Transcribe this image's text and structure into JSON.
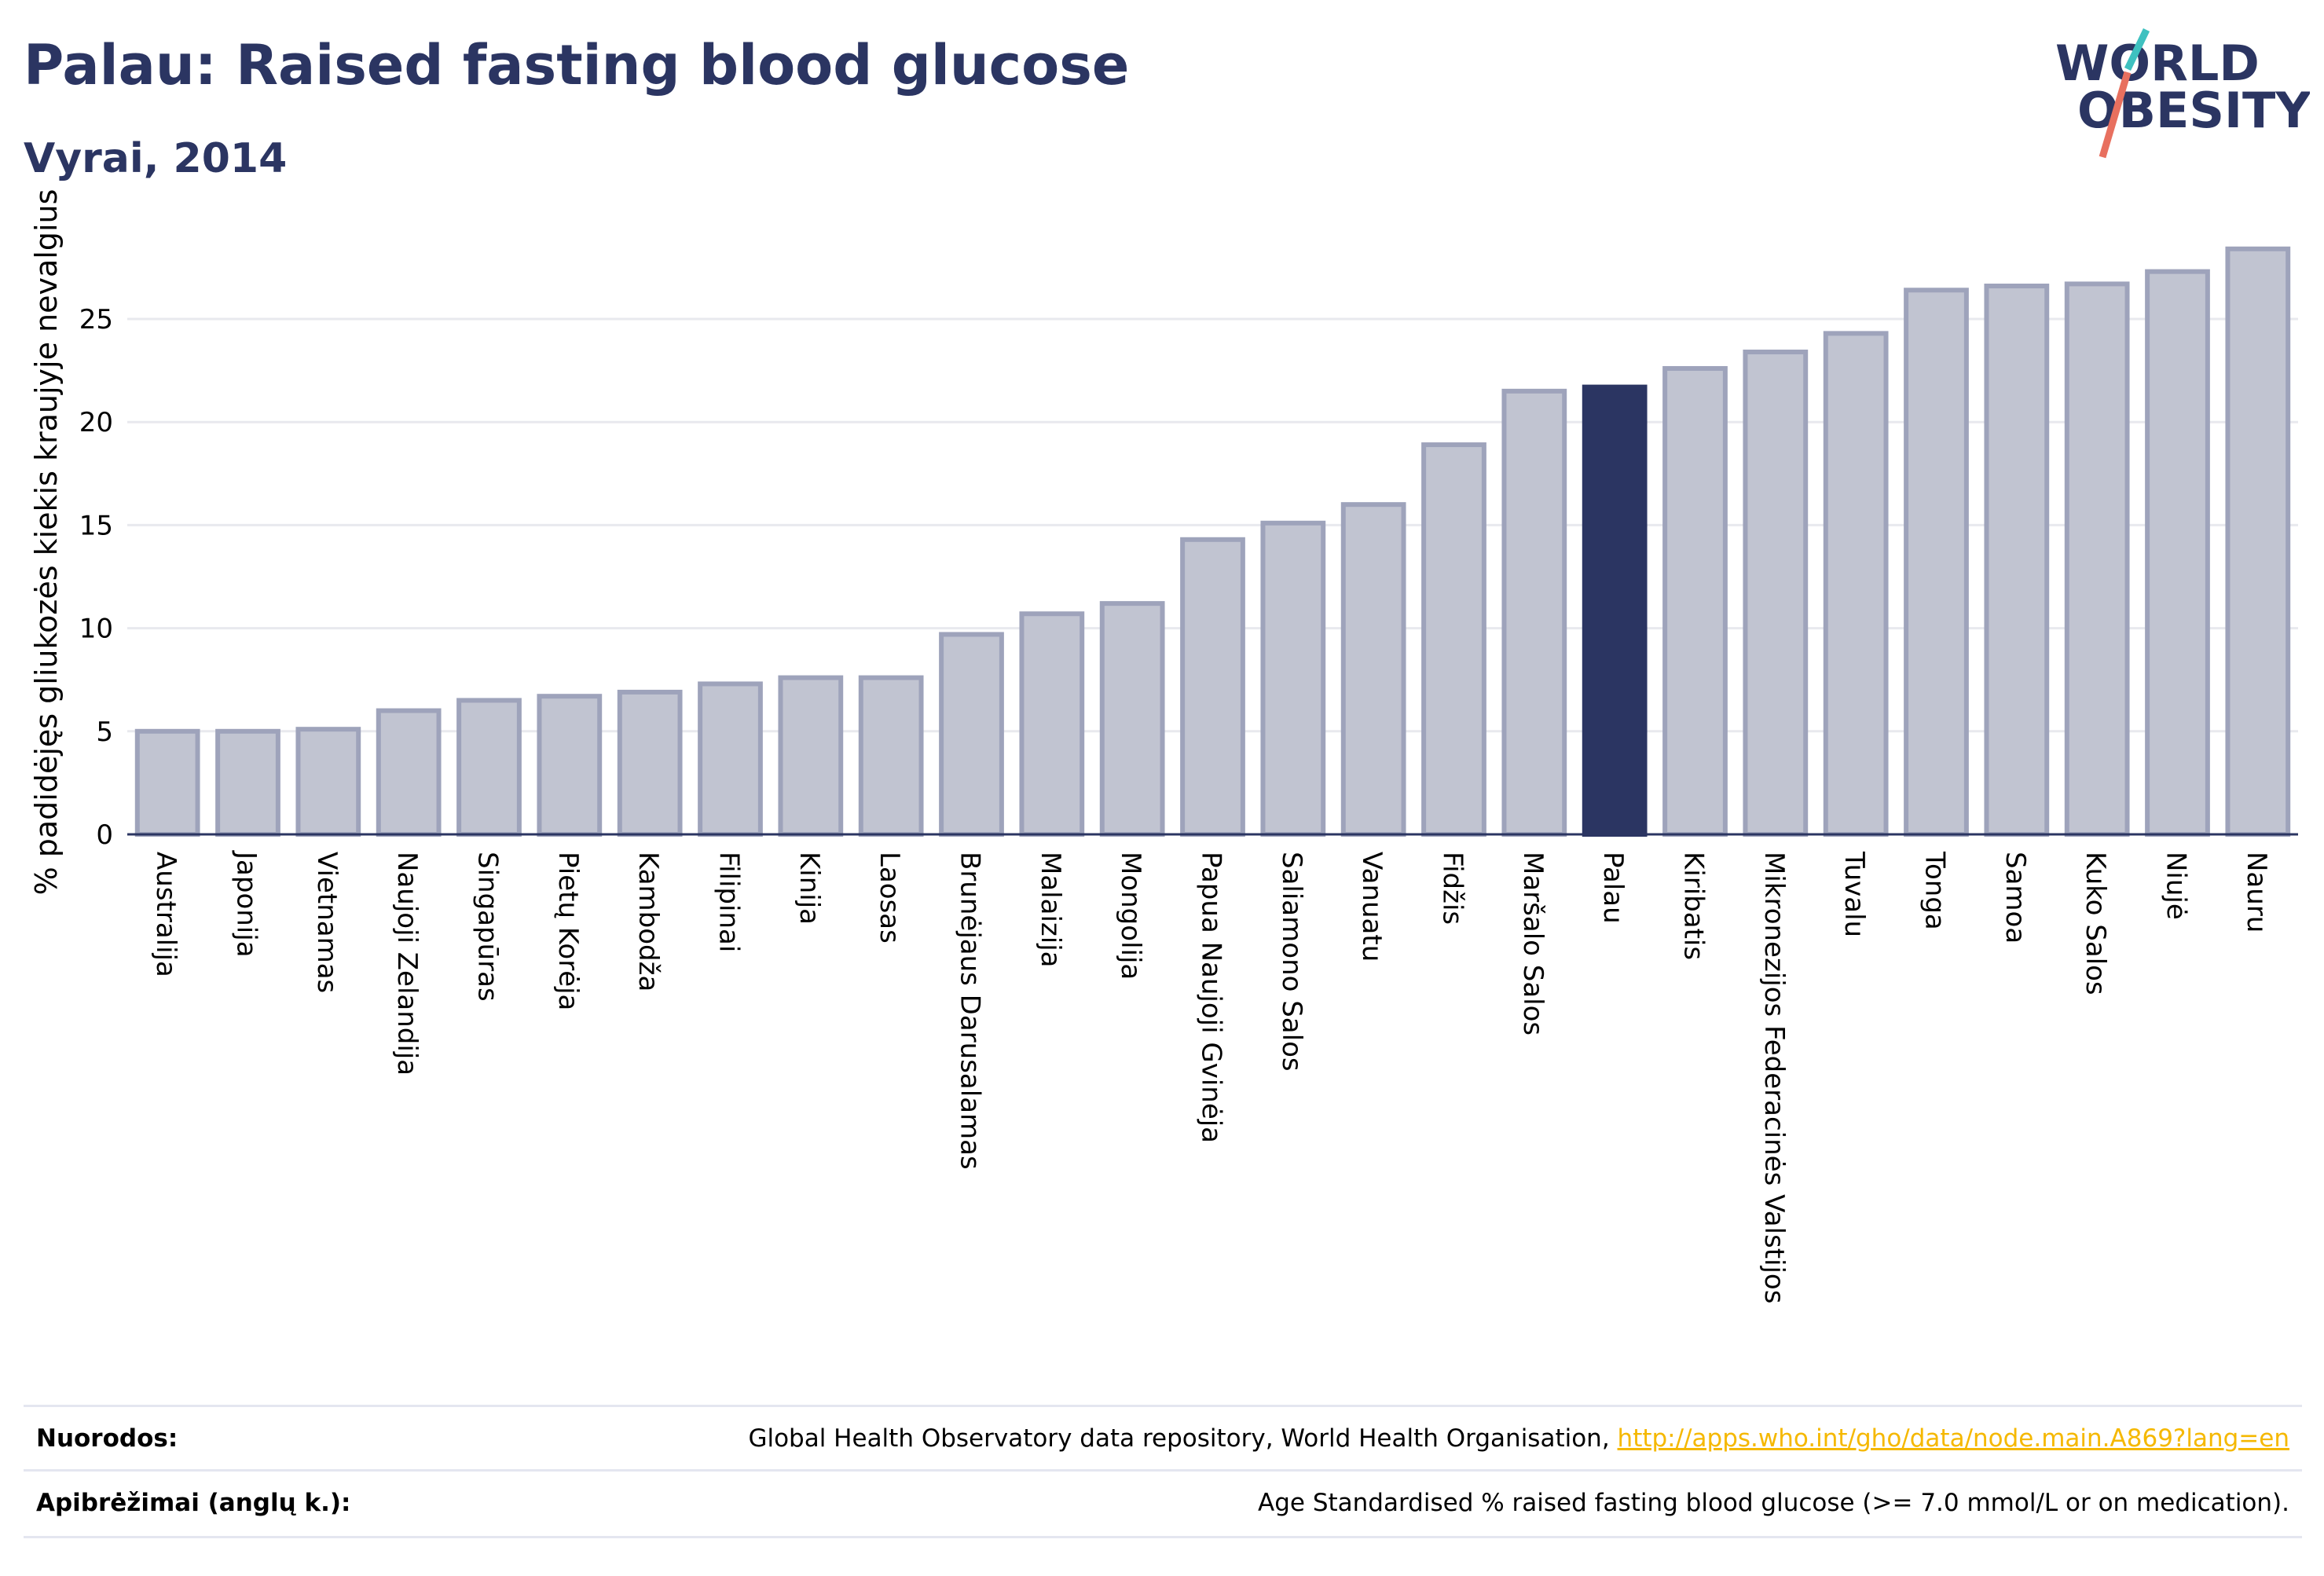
{
  "header": {
    "title": "Palau: Raised fasting blood glucose",
    "subtitle": "Vyrai, 2014"
  },
  "logo": {
    "line1": "WORLD",
    "line2": "OBESITY",
    "colors": {
      "text": "#2b3562",
      "slash_top": "#3fc1c0",
      "slash_bottom": "#e8705f"
    }
  },
  "chart_data": {
    "type": "bar",
    "ylabel": "% padidėjęs gliukozės kiekis kraujyje nevalgius",
    "xlabel": "",
    "ylim": [
      0,
      29
    ],
    "yticks": [
      0,
      5,
      10,
      15,
      20,
      25
    ],
    "grid": true,
    "categories": [
      "Australija",
      "Japonija",
      "Vietnamas",
      "Naujoji Zelandija",
      "Singapūras",
      "Pietų Korėja",
      "Kambodža",
      "Filipinai",
      "Kinija",
      "Laosas",
      "Brunėjaus Darusalamas",
      "Malaizija",
      "Mongolija",
      "Papua Naujoji Gvinėja",
      "Saliamono Salos",
      "Vanuatu",
      "Fidžis",
      "Maršalo Salos",
      "Palau",
      "Kiribatis",
      "Mikronezijos Federacinės Valstijos",
      "Tuvalu",
      "Tonga",
      "Samoa",
      "Kuko Salos",
      "Niujė",
      "Nauru"
    ],
    "values": [
      5.0,
      5.0,
      5.1,
      6.0,
      6.5,
      6.7,
      6.9,
      7.3,
      7.6,
      7.6,
      9.7,
      10.7,
      11.2,
      14.3,
      15.1,
      16.0,
      18.9,
      21.5,
      21.7,
      22.6,
      23.4,
      24.3,
      26.4,
      26.6,
      26.7,
      27.3,
      28.4
    ],
    "highlight": "Palau",
    "colors": {
      "bar": "#c1c4d1",
      "bar_border": "#9ea3bb",
      "highlight": "#2b3562",
      "axis": "#2b3562",
      "grid": "#e8e9ee"
    }
  },
  "footer": {
    "sources_label": "Nuorodos:",
    "sources_text": "Global Health Observatory data repository, World Health Organisation,",
    "sources_link": "http://apps.who.int/gho/data/node.main.A869?lang=en",
    "definitions_label": "Apibrėžimai (anglų k.):",
    "definitions_text": "Age Standardised % raised fasting blood glucose (>= 7.0 mmol/L or on medication)."
  }
}
